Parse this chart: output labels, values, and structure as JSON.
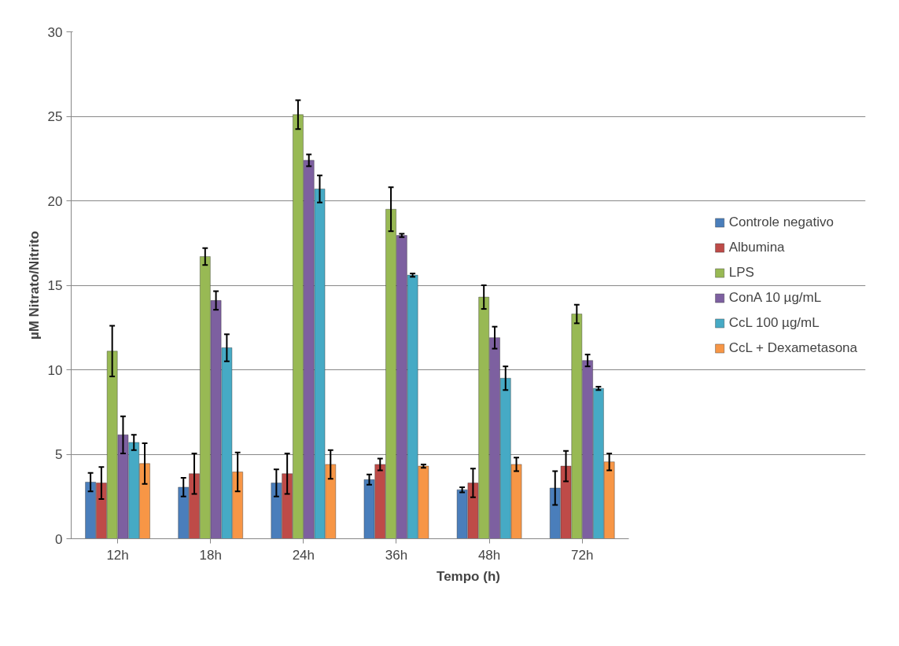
{
  "chart_data": {
    "type": "bar",
    "xlabel": "Tempo (h)",
    "ylabel": "µM Nitrato/Nitrito",
    "categories": [
      "12h",
      "18h",
      "24h",
      "36h",
      "48h",
      "72h"
    ],
    "ylim": [
      0,
      30
    ],
    "yticks": [
      0,
      5,
      10,
      15,
      20,
      25,
      30
    ],
    "grid": "y",
    "legend": "right",
    "series": [
      {
        "name": "Controle negativo",
        "color": "#4a7ebb",
        "values": [
          3.35,
          3.05,
          3.3,
          3.5,
          2.9,
          3.0
        ],
        "errors": [
          0.55,
          0.55,
          0.8,
          0.3,
          0.15,
          1.0
        ]
      },
      {
        "name": "Albumina",
        "color": "#be4b48",
        "values": [
          3.3,
          3.85,
          3.85,
          4.4,
          3.3,
          4.3
        ],
        "errors": [
          0.95,
          1.2,
          1.2,
          0.35,
          0.85,
          0.9
        ]
      },
      {
        "name": "LPS",
        "color": "#98b954",
        "values": [
          11.1,
          16.7,
          25.1,
          19.5,
          14.3,
          13.3
        ],
        "errors": [
          1.5,
          0.5,
          0.85,
          1.3,
          0.7,
          0.55
        ]
      },
      {
        "name": "ConA 10 µg/mL",
        "color": "#7d60a0",
        "values": [
          6.15,
          14.1,
          22.4,
          17.95,
          11.9,
          10.55
        ],
        "errors": [
          1.1,
          0.55,
          0.35,
          0.1,
          0.65,
          0.35
        ]
      },
      {
        "name": "CcL 100 µg/mL",
        "color": "#46aac5",
        "values": [
          5.7,
          11.3,
          20.7,
          15.6,
          9.5,
          8.9
        ],
        "errors": [
          0.45,
          0.8,
          0.8,
          0.1,
          0.7,
          0.1
        ]
      },
      {
        "name": "CcL + Dexametasona",
        "color": "#f79646",
        "values": [
          4.45,
          3.95,
          4.4,
          4.3,
          4.4,
          4.55
        ],
        "errors": [
          1.2,
          1.15,
          0.85,
          0.1,
          0.4,
          0.5
        ]
      }
    ]
  }
}
